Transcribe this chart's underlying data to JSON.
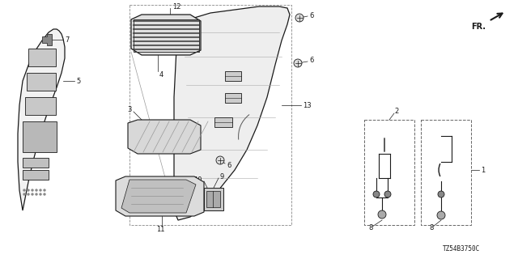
{
  "background_color": "#ffffff",
  "diagram_code": "TZ54B3750C",
  "line_color": "#1a1a1a",
  "gray_fill": "#e8e8e8",
  "dark_gray": "#555555",
  "light_gray": "#cccccc"
}
